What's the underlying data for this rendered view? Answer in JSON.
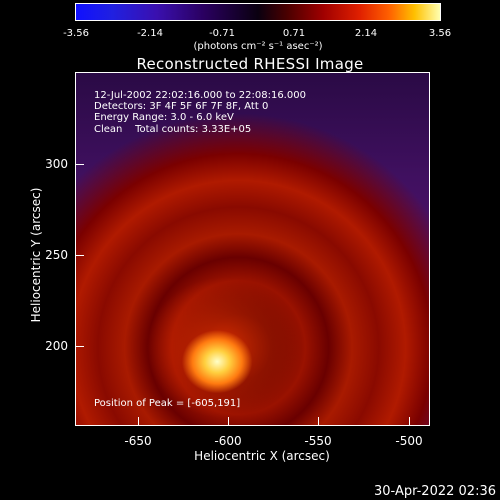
{
  "colorbar": {
    "ticks": [
      "-3.56",
      "-2.14",
      "-0.71",
      "0.71",
      "2.14",
      "3.56"
    ],
    "unit": "(photons cm⁻² s⁻¹ asec⁻²)",
    "gradient": [
      "#1010ff",
      "#2a0060",
      "#0a0010",
      "#a00000",
      "#ff6000",
      "#ffffb0"
    ]
  },
  "chart_data": {
    "type": "heatmap",
    "title": "Reconstructed RHESSI Image",
    "xlabel": "Heliocentric X (arcsec)",
    "ylabel": "Heliocentric Y (arcsec)",
    "xlim": [
      -677,
      -483
    ],
    "ylim": [
      153,
      345
    ],
    "x_ticks": [
      "-650",
      "-600",
      "-550",
      "-500"
    ],
    "y_ticks": [
      "200",
      "250",
      "300"
    ],
    "peak": {
      "x": -605,
      "y": 191
    },
    "color_range": [
      -3.56,
      3.56
    ]
  },
  "info": {
    "time": "12-Jul-2002 22:02:16.000 to 22:08:16.000",
    "detectors": "Detectors: 3F 4F 5F 6F 7F 8F, Att 0",
    "energy": "Energy Range: 3.0 - 6.0 keV",
    "clean": "Clean    Total counts: 3.33E+05",
    "peak": "Position of Peak = [-605,191]"
  },
  "timestamp": "30-Apr-2022 02:36"
}
